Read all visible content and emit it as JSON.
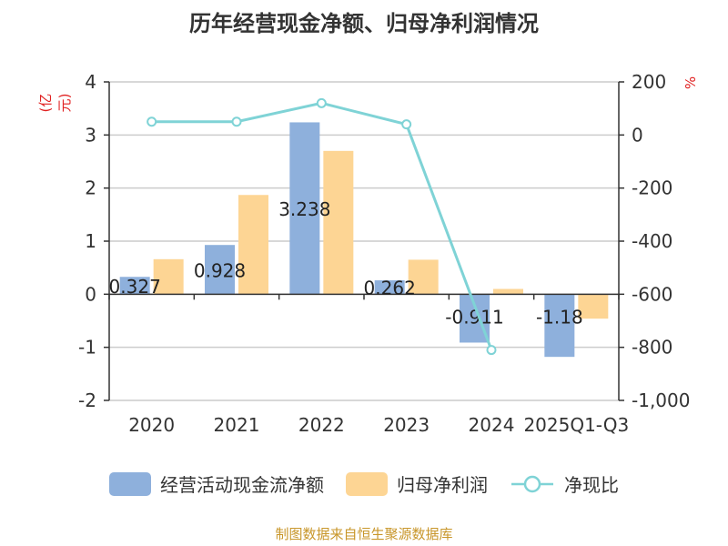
{
  "chart_data": {
    "type": "bar+line",
    "title": "历年经营现金净额、归母净利润情况",
    "unit_left": "(亿元)",
    "unit_right": "%",
    "categories": [
      "2020",
      "2021",
      "2022",
      "2023",
      "2024",
      "2025Q1-Q3"
    ],
    "y_left": {
      "range": [
        -2,
        4
      ],
      "ticks": [
        "4",
        "3",
        "2",
        "1",
        "0",
        "-1",
        "-2"
      ]
    },
    "y_right": {
      "range": [
        -1000,
        200
      ],
      "ticks": [
        "200",
        "0",
        "-200",
        "-400",
        "-600",
        "-800",
        "-1,000"
      ]
    },
    "series": [
      {
        "name": "经营活动现金流净额",
        "type": "bar",
        "axis": "left",
        "color": "#8eb0dc",
        "values": [
          0.327,
          0.928,
          3.238,
          0.262,
          -0.911,
          -1.18
        ],
        "labels": [
          "0.327",
          "0.928",
          "3.238",
          "0.262",
          "-0.911",
          "-1.18"
        ]
      },
      {
        "name": "归母净利润",
        "type": "bar",
        "axis": "left",
        "color": "#fdd594",
        "values": [
          0.66,
          1.87,
          2.7,
          0.65,
          0.1,
          -0.46
        ]
      },
      {
        "name": "净现比",
        "type": "line",
        "axis": "right",
        "color": "#7fd3d6",
        "values": [
          50,
          50,
          120,
          40,
          -810,
          null
        ]
      }
    ],
    "source": "制图数据来自恒生聚源数据库"
  }
}
